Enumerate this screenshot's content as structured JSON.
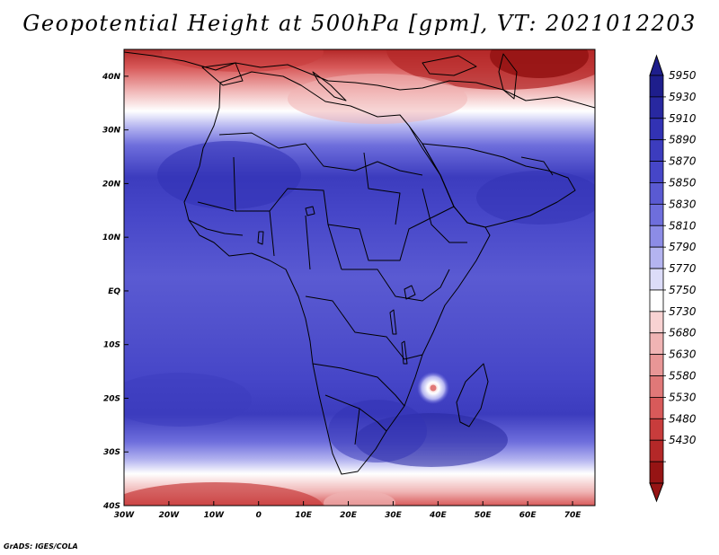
{
  "title": "Geopotential Height at 500hPa [gpm], VT: 2021012203",
  "credit": "GrADS: IGES/COLA",
  "map": {
    "lon_range": [
      -30,
      75
    ],
    "lat_range": [
      -40,
      45
    ],
    "lat_ticks": [
      "40N",
      "30N",
      "20N",
      "10N",
      "EQ",
      "10S",
      "20S",
      "30S",
      "40S"
    ],
    "lon_ticks": [
      "30W",
      "20W",
      "10W",
      "0",
      "10E",
      "20E",
      "30E",
      "40E",
      "50E",
      "60E",
      "70E"
    ]
  },
  "colorbar": {
    "levels": [
      "5950",
      "5930",
      "5910",
      "5890",
      "5870",
      "5850",
      "5830",
      "5810",
      "5790",
      "5770",
      "5750",
      "5730",
      "5680",
      "5630",
      "5580",
      "5530",
      "5480",
      "5430"
    ],
    "colors": [
      "#1e1e8c",
      "#2828a0",
      "#3232b4",
      "#3c3cbe",
      "#4646c8",
      "#5a5ad2",
      "#6e6edc",
      "#8c8ce6",
      "#b4b4f0",
      "#dcdcf8",
      "#ffffff",
      "#f8d2d2",
      "#f0b4b4",
      "#e89696",
      "#e07878",
      "#d85a5a",
      "#c83c3c",
      "#b42828",
      "#961414"
    ],
    "top_color": "#1e1e8c",
    "bottom_color": "#961414"
  }
}
